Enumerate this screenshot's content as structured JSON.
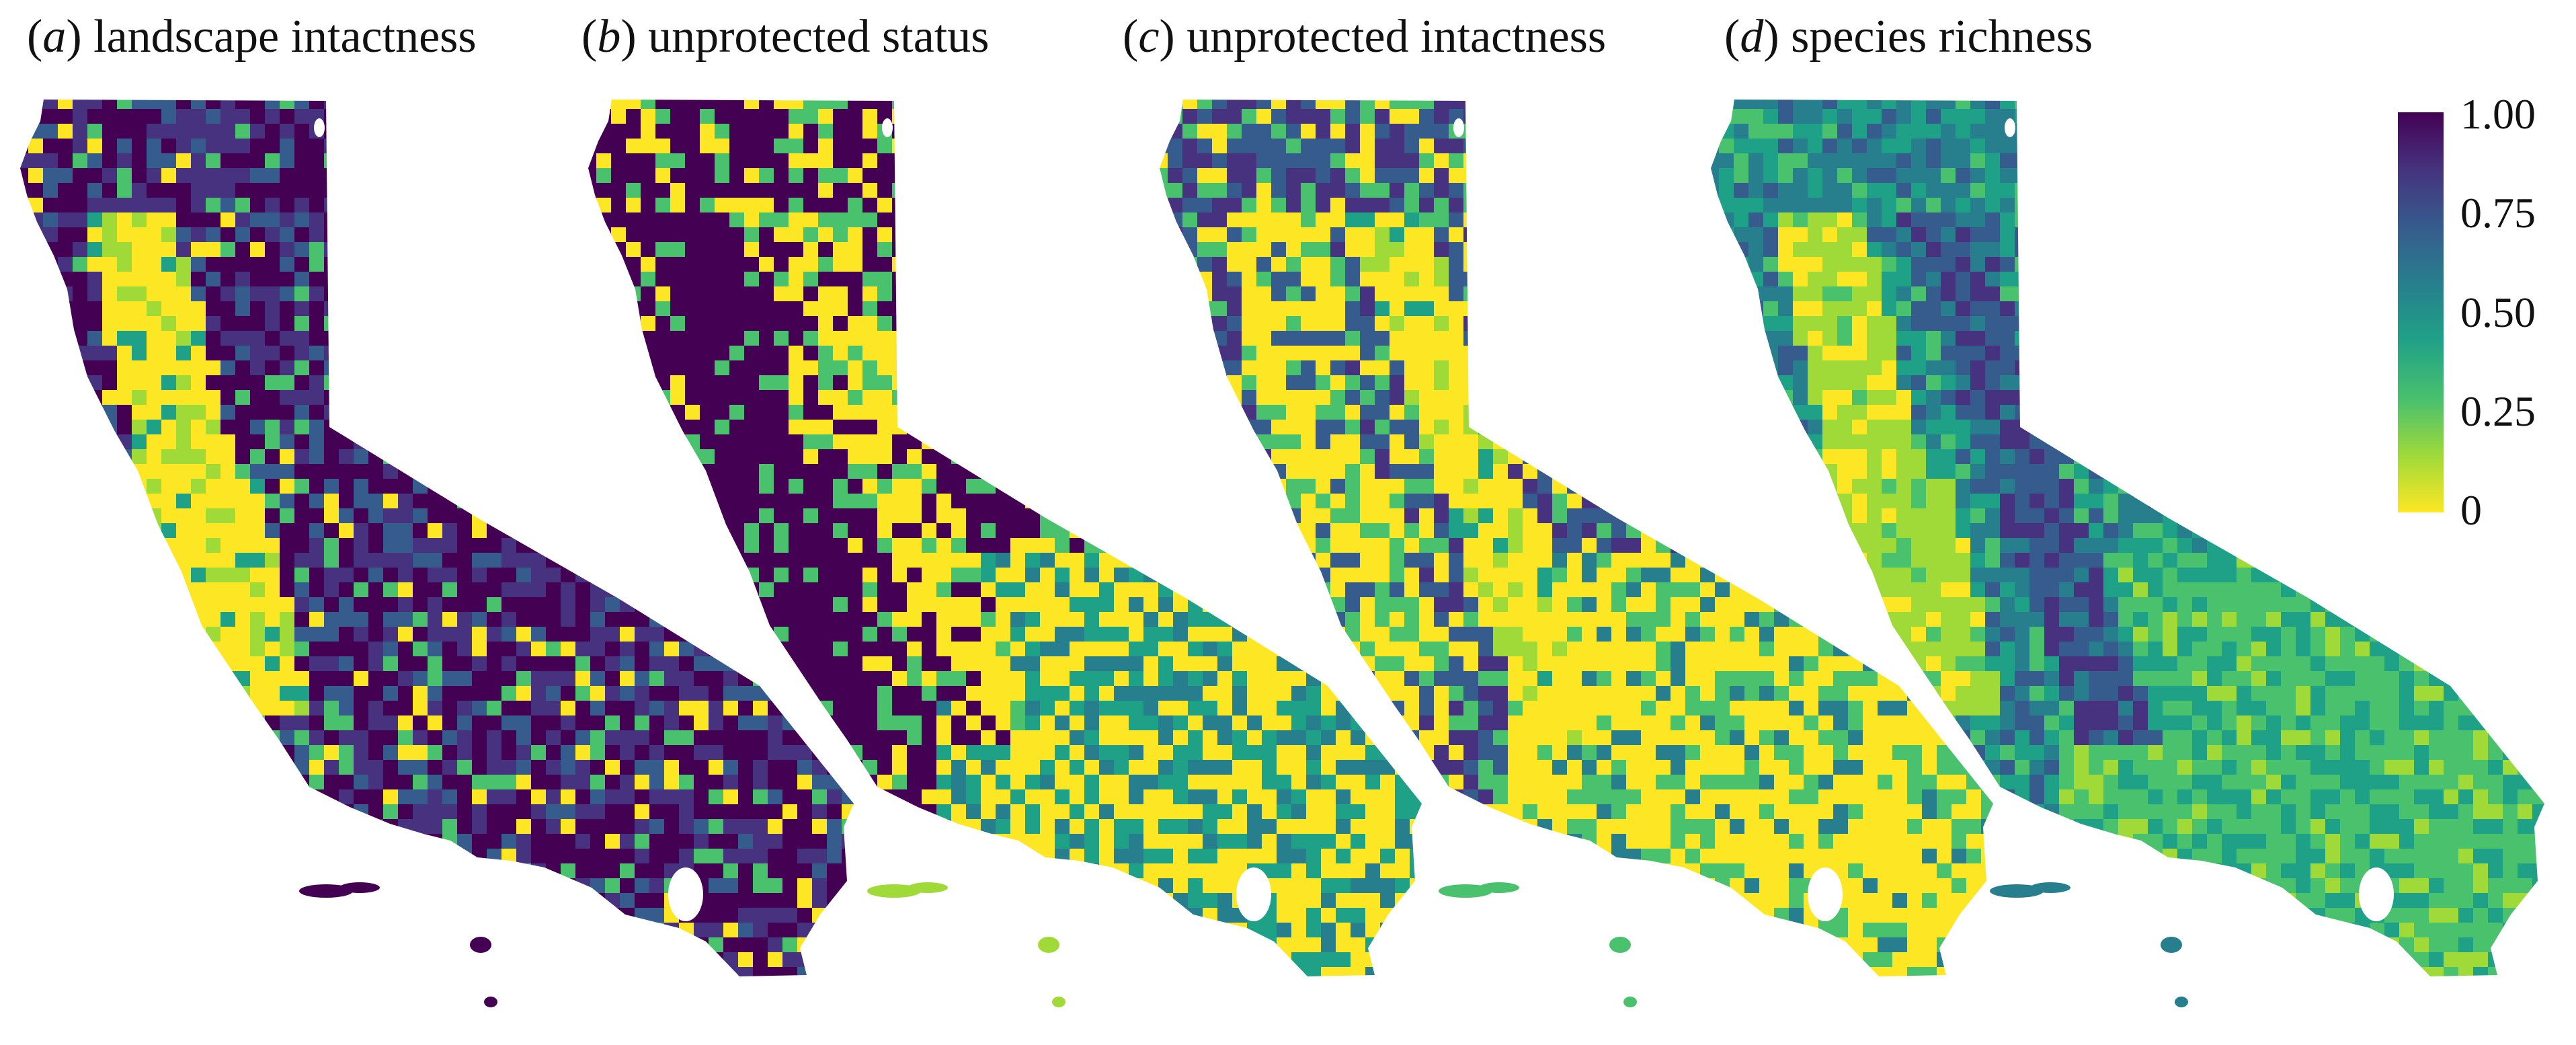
{
  "panels": [
    {
      "label": "(a)",
      "letter": "a",
      "title": "landscape intactness",
      "pattern": "intactness"
    },
    {
      "label": "(b)",
      "letter": "b",
      "title": "unprotected status",
      "pattern": "unprotected"
    },
    {
      "label": "(c)",
      "letter": "c",
      "title": "unprotected intactness",
      "pattern": "combined"
    },
    {
      "label": "(d)",
      "letter": "d",
      "title": "species richness",
      "pattern": "richness"
    }
  ],
  "legend": {
    "ticks": [
      "1.00",
      "0.75",
      "0.50",
      "0.25",
      "0"
    ],
    "colors": [
      "#fde725",
      "#a0da39",
      "#4ac16d",
      "#1fa187",
      "#277f8e",
      "#365c8d",
      "#46327e",
      "#440154"
    ]
  }
}
